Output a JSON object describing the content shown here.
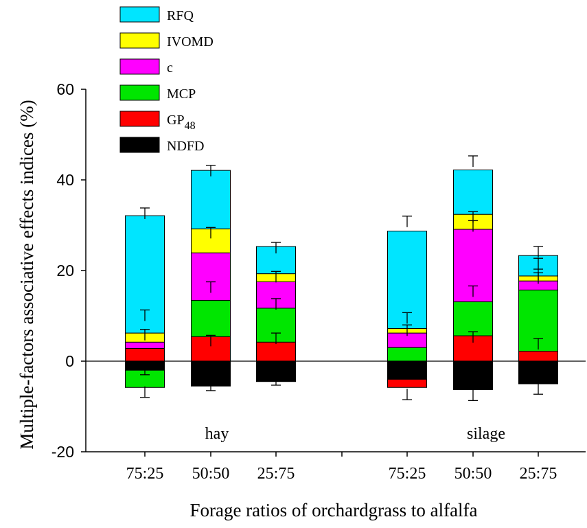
{
  "chart_data": {
    "type": "bar",
    "stacked": true,
    "ylabel": "Multiple-factors associative effects indices (%)",
    "xlabel": "Forage ratios of orchardgrass to alfalfa",
    "ylim": [
      -20,
      60
    ],
    "yticks": [
      "60",
      "40",
      "20",
      "0",
      "-20"
    ],
    "groups": [
      "hay",
      "silage"
    ],
    "categories": [
      "75:25",
      "50:50",
      "25:75",
      "75:25",
      "50:50",
      "25:75"
    ],
    "legend": [
      {
        "key": "RFQ",
        "label": "RFQ",
        "color": "#00e5ff"
      },
      {
        "key": "IVOMD",
        "label": "IVOMD",
        "color": "#ffff00"
      },
      {
        "key": "c",
        "label": "c",
        "color": "#ff00ff"
      },
      {
        "key": "MCP",
        "label": "MCP",
        "color": "#00e600"
      },
      {
        "key": "GP48",
        "label": "GP",
        "sub": "48",
        "color": "#ff0000"
      },
      {
        "key": "NDFD",
        "label": "NDFD",
        "color": "#000000"
      }
    ],
    "legend_position": "top-left",
    "grid": false,
    "series": [
      {
        "name": "NDFD",
        "color": "#000000",
        "values": [
          -2,
          -5.5,
          -4.5,
          -4,
          -6.3,
          -5
        ]
      },
      {
        "name": "GP48",
        "color": "#ff0000",
        "values": [
          2.8,
          5.4,
          4.2,
          -1.8,
          5.6,
          2.2
        ]
      },
      {
        "name": "MCP",
        "color": "#00e600",
        "values": [
          -3.8,
          8,
          7.5,
          3,
          7.5,
          13.5
        ]
      },
      {
        "name": "c",
        "color": "#ff00ff",
        "values": [
          1.4,
          10.5,
          5.8,
          3.2,
          16,
          2
        ]
      },
      {
        "name": "IVOMD",
        "color": "#ffff00",
        "values": [
          2,
          5.3,
          1.8,
          1,
          3.3,
          1.1
        ]
      },
      {
        "name": "RFQ",
        "color": "#00e5ff",
        "values": [
          25.9,
          12.9,
          6,
          21.5,
          9.8,
          4.5
        ]
      }
    ],
    "error_bars": [
      {
        "y": 33.8,
        "type": "up",
        "bar": 0
      },
      {
        "y": 11.3,
        "type": "up",
        "bar": 0
      },
      {
        "y": 7,
        "type": "up",
        "bar": 0
      },
      {
        "y": -3,
        "type": "down",
        "bar": 0
      },
      {
        "y": -8,
        "type": "down",
        "bar": 0
      },
      {
        "y": 43.2,
        "type": "up",
        "bar": 1
      },
      {
        "y": 29.5,
        "type": "up",
        "bar": 1
      },
      {
        "y": 17.5,
        "type": "up",
        "bar": 1
      },
      {
        "y": 5.7,
        "type": "up",
        "bar": 1
      },
      {
        "y": -6.5,
        "type": "down",
        "bar": 1
      },
      {
        "y": 26.2,
        "type": "up",
        "bar": 2
      },
      {
        "y": 19.8,
        "type": "up",
        "bar": 2
      },
      {
        "y": 13.8,
        "type": "up",
        "bar": 2
      },
      {
        "y": 6.2,
        "type": "up",
        "bar": 2
      },
      {
        "y": -5.3,
        "type": "down",
        "bar": 2
      },
      {
        "y": 32,
        "type": "up",
        "bar": 3
      },
      {
        "y": 10.7,
        "type": "up",
        "bar": 3
      },
      {
        "y": 8,
        "type": "up",
        "bar": 3
      },
      {
        "y": -8.5,
        "type": "down",
        "bar": 3
      },
      {
        "y": 45.3,
        "type": "up",
        "bar": 4
      },
      {
        "y": 33,
        "type": "up",
        "bar": 4
      },
      {
        "y": 31,
        "type": "up",
        "bar": 4
      },
      {
        "y": 16.6,
        "type": "up",
        "bar": 4
      },
      {
        "y": 6.5,
        "type": "up",
        "bar": 4
      },
      {
        "y": -8.7,
        "type": "down",
        "bar": 4
      },
      {
        "y": 25.3,
        "type": "up",
        "bar": 5
      },
      {
        "y": 22.7,
        "type": "up",
        "bar": 5
      },
      {
        "y": 20.3,
        "type": "up",
        "bar": 5
      },
      {
        "y": 19.5,
        "type": "up",
        "bar": 5
      },
      {
        "y": 5,
        "type": "up",
        "bar": 5
      },
      {
        "y": -7.3,
        "type": "down",
        "bar": 5
      }
    ]
  }
}
